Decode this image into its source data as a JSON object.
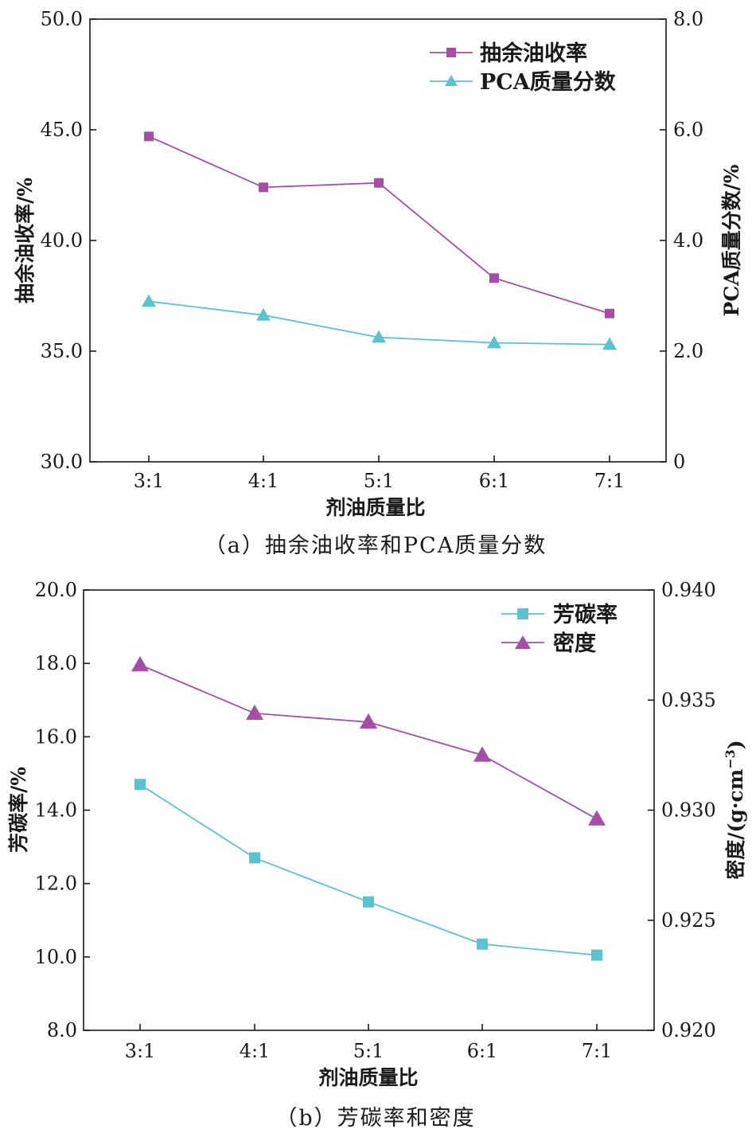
{
  "colors": {
    "purple": "#a44ea5",
    "cyan": "#5cc2d1",
    "axis": "#1a1a1a"
  },
  "chart_data": [
    {
      "type": "line",
      "caption": "（a）抽余油收率和PCA质量分数",
      "xlabel": "剂油质量比",
      "categories": [
        "3:1",
        "4:1",
        "5:1",
        "6:1",
        "7:1"
      ],
      "y_left": {
        "label": "抽余油收率/%",
        "range": [
          30.0,
          50.0
        ],
        "ticks": [
          "30.0",
          "35.0",
          "40.0",
          "45.0",
          "50.0"
        ]
      },
      "y_right": {
        "label": "PCA质量分数/%",
        "range": [
          0,
          8.0
        ],
        "ticks": [
          "0",
          "2.0",
          "4.0",
          "6.0",
          "8.0"
        ]
      },
      "legend_position": "top-right",
      "series": [
        {
          "name": "抽余油收率",
          "axis": "left",
          "marker": "square",
          "color": "#a44ea5",
          "values": [
            44.7,
            42.4,
            42.6,
            38.3,
            36.7
          ]
        },
        {
          "name": "PCA质量分数",
          "axis": "right",
          "marker": "triangle",
          "color": "#5cc2d1",
          "values": [
            2.9,
            2.65,
            2.25,
            2.15,
            2.12
          ]
        }
      ]
    },
    {
      "type": "line",
      "caption": "（b）芳碳率和密度",
      "xlabel": "剂油质量比",
      "categories": [
        "3:1",
        "4:1",
        "5:1",
        "6:1",
        "7:1"
      ],
      "y_left": {
        "label": "芳碳率/%",
        "range": [
          8.0,
          20.0
        ],
        "ticks": [
          "8.0",
          "10.0",
          "12.0",
          "14.0",
          "16.0",
          "18.0",
          "20.0"
        ]
      },
      "y_right": {
        "label": "密度/(g·cm",
        "label_sup": "−3",
        "label_end": ")",
        "range": [
          0.92,
          0.94
        ],
        "ticks": [
          "0.920",
          "0.925",
          "0.930",
          "0.935",
          "0.940"
        ]
      },
      "legend_position": "top-right",
      "series": [
        {
          "name": "芳碳率",
          "axis": "left",
          "marker": "square",
          "color": "#5cc2d1",
          "values": [
            14.7,
            12.7,
            11.5,
            10.35,
            10.05
          ]
        },
        {
          "name": "密度",
          "axis": "right",
          "marker": "triangle",
          "color": "#a44ea5",
          "values": [
            0.9366,
            0.9344,
            0.934,
            0.9325,
            0.9296
          ]
        }
      ]
    }
  ]
}
